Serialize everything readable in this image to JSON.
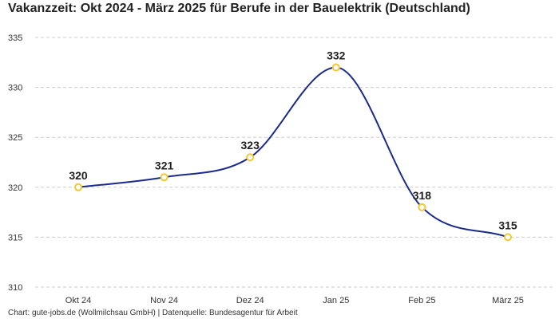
{
  "chart_data": {
    "type": "line",
    "title": "Vakanzzeit: Okt 2024 - März 2025 für Berufe in der Bauelektrik (Deutschland)",
    "categories": [
      "Okt 24",
      "Nov 24",
      "Dez 24",
      "Jan 25",
      "Feb 25",
      "März 25"
    ],
    "series": [
      {
        "values": [
          320,
          321,
          323,
          332,
          318,
          315
        ]
      }
    ],
    "data_labels": [
      "320",
      "321",
      "323",
      "332",
      "318",
      "315"
    ],
    "y_ticks": [
      310,
      315,
      320,
      325,
      330,
      335
    ],
    "y_tick_labels": [
      "310",
      "315",
      "320",
      "325",
      "330",
      "335"
    ],
    "ylim": [
      310,
      335
    ],
    "grid": "horizontal dashed",
    "legend": "none",
    "line_style": "smooth",
    "colors": {
      "line": "#1a2a8c",
      "marker_stroke": "#f2c930",
      "marker_fill": "#ffffff",
      "grid": "#cccccc"
    },
    "source": "Chart: gute-jobs.de (Wollmilchsau GmbH) | Datenquelle: Bundesagentur für Arbeit"
  }
}
